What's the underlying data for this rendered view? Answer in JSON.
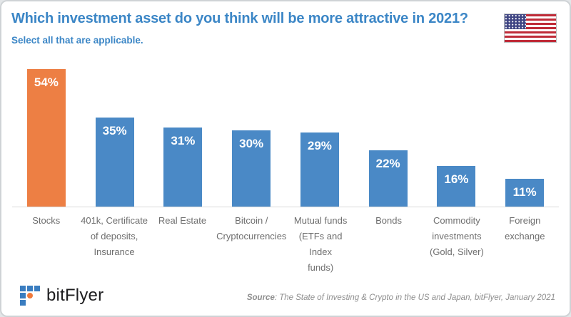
{
  "header": {
    "title": "Which investment asset do you think will be more attractive in 2021?",
    "subtitle": "Select all that are applicable.",
    "flag": "us-flag"
  },
  "colors": {
    "title_blue": "#3b86c6",
    "bar_default": "#4a89c6",
    "bar_highlight": "#ed7f44",
    "bar_value_text": "#ffffff",
    "category_label": "#6e6e6e",
    "axis_line": "#d9d9d9",
    "flag_red": "#bf2b38",
    "flag_blue": "#3f4583",
    "logo_blue": "#3a7dc0",
    "logo_orange": "#f0793a"
  },
  "chart_data": {
    "type": "bar",
    "title": "Which investment asset do you think will be more attractive in 2021?",
    "subtitle": "Select all that are applicable.",
    "unit": "%",
    "xlabel": "",
    "ylabel": "",
    "ylim": [
      0,
      60
    ],
    "grid": false,
    "legend": "none",
    "categories": [
      "Stocks",
      "401k, Certificate of deposits, Insurance",
      "Real Estate",
      "Bitcoin / Cryptocurrencies",
      "Mutual funds (ETFs and Index funds)",
      "Bonds",
      "Commodity investments (Gold, Silver)",
      "Foreign exchange"
    ],
    "label_lines": [
      [
        "Stocks"
      ],
      [
        "401k, Certificate",
        "of deposits,",
        "Insurance"
      ],
      [
        "Real Estate"
      ],
      [
        "Bitcoin /",
        "Cryptocurrencies"
      ],
      [
        "Mutual funds",
        "(ETFs and Index",
        "funds)"
      ],
      [
        "Bonds"
      ],
      [
        "Commodity",
        "investments",
        "(Gold, Silver)"
      ],
      [
        "Foreign",
        "exchange"
      ]
    ],
    "values": [
      54,
      35,
      31,
      30,
      29,
      22,
      16,
      11
    ],
    "value_labels": [
      "54%",
      "35%",
      "31%",
      "30%",
      "29%",
      "22%",
      "16%",
      "11%"
    ],
    "highlight_index": 0
  },
  "footer": {
    "logo_text": "bitFlyer",
    "source_label": "Source",
    "source_rest": ": The State of Investing & Crypto in the US and Japan, bitFlyer, January 2021"
  }
}
